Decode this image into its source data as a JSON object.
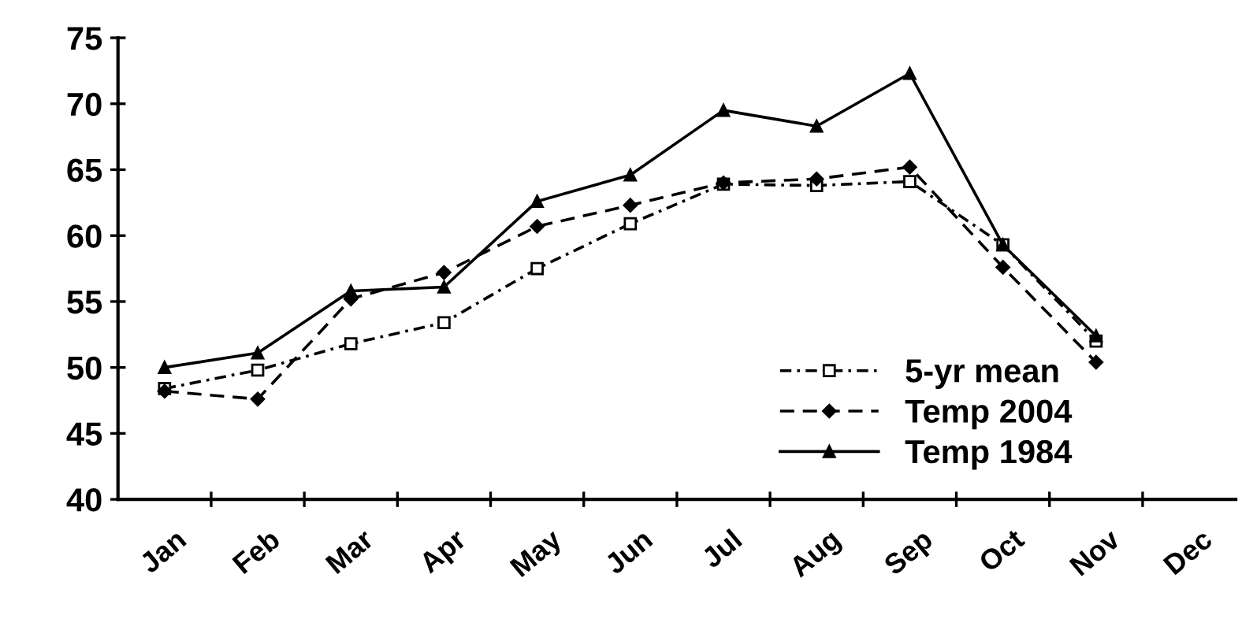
{
  "chart_data": {
    "type": "line",
    "categories": [
      "Jan",
      "Feb",
      "Mar",
      "Apr",
      "May",
      "Jun",
      "Jul",
      "Aug",
      "Sep",
      "Oct",
      "Nov",
      "Dec"
    ],
    "series": [
      {
        "name": "5-yr mean",
        "color": "#000000",
        "marker": "square",
        "line_style": "dashdot",
        "values": [
          48.4,
          49.8,
          51.8,
          53.4,
          57.5,
          60.9,
          63.9,
          63.8,
          64.1,
          59.3,
          52.0,
          null
        ]
      },
      {
        "name": "Temp 2004",
        "color": "#000000",
        "marker": "diamond",
        "line_style": "dashed",
        "values": [
          48.2,
          47.6,
          55.2,
          57.2,
          60.7,
          62.3,
          64.0,
          64.3,
          65.2,
          57.6,
          50.4,
          null
        ]
      },
      {
        "name": "Temp 1984",
        "color": "#000000",
        "marker": "triangle",
        "line_style": "solid",
        "values": [
          50.0,
          51.1,
          55.8,
          56.1,
          62.6,
          64.6,
          69.5,
          68.3,
          72.3,
          59.3,
          52.4,
          null
        ]
      }
    ],
    "ylim": [
      40,
      75
    ],
    "yticks": [
      40,
      45,
      50,
      55,
      60,
      65,
      70,
      75
    ],
    "grid": false,
    "legend": "bottom right"
  }
}
